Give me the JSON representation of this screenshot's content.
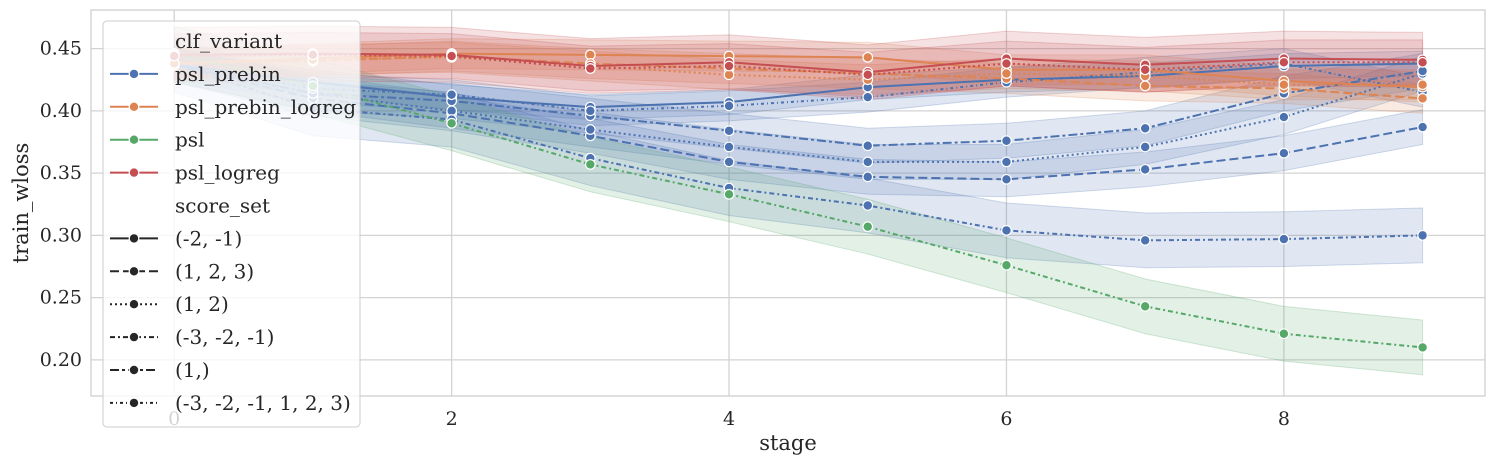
{
  "chart_data": {
    "type": "line",
    "xlabel": "stage",
    "ylabel": "train_wloss",
    "xlim": [
      -0.6,
      9.45
    ],
    "ylim": [
      0.171,
      0.481
    ],
    "xticks": [
      0,
      2,
      4,
      6,
      8
    ],
    "yticks": [
      0.2,
      0.25,
      0.3,
      0.35,
      0.4,
      0.45
    ],
    "ytick_labels": [
      "0.20",
      "0.25",
      "0.30",
      "0.35",
      "0.40",
      "0.45"
    ],
    "grid": true,
    "colors": {
      "psl_prebin": "#4c72b0",
      "psl_prebin_logreg": "#dd8452",
      "psl": "#55a868",
      "psl_logreg": "#c44e52",
      "grid": "#d3d3d3",
      "legend_dark": "#262626"
    },
    "x": [
      0,
      1,
      2,
      3,
      4,
      5,
      6,
      7,
      8,
      9
    ],
    "series": [
      {
        "clf_variant": "psl_prebin",
        "score_set": "(-2, -1)",
        "values": [
          0.437,
          0.423,
          0.411,
          0.403,
          0.407,
          0.419,
          0.425,
          0.428,
          0.436,
          0.438
        ],
        "band": 0.01
      },
      {
        "clf_variant": "psl_prebin",
        "score_set": "(1, 2, 3)",
        "values": [
          0.437,
          0.41,
          0.398,
          0.38,
          0.359,
          0.347,
          0.345,
          0.353,
          0.366,
          0.387
        ],
        "band": 0.014
      },
      {
        "clf_variant": "psl_prebin",
        "score_set": "(1, 2)",
        "values": [
          0.437,
          0.414,
          0.4,
          0.385,
          0.371,
          0.359,
          0.359,
          0.371,
          0.395,
          0.43
        ],
        "band": 0.014
      },
      {
        "clf_variant": "psl_prebin",
        "score_set": "(-3, -2, -1)",
        "values": [
          0.437,
          0.402,
          0.393,
          0.362,
          0.338,
          0.324,
          0.304,
          0.296,
          0.297,
          0.3
        ],
        "band": 0.022
      },
      {
        "clf_variant": "psl_prebin",
        "score_set": "(1,)",
        "values": [
          0.437,
          0.414,
          0.408,
          0.396,
          0.384,
          0.372,
          0.376,
          0.386,
          0.414,
          0.432
        ],
        "band": 0.014
      },
      {
        "clf_variant": "psl_prebin",
        "score_set": "(-3, -2, -1, 1, 2, 3)",
        "values": [
          0.437,
          0.418,
          0.413,
          0.4,
          0.404,
          0.411,
          0.423,
          0.431,
          0.438,
          0.415
        ],
        "band": 0.012
      },
      {
        "clf_variant": "psl_prebin_logreg",
        "score_set": "(-2, -1)",
        "values": [
          0.438,
          0.442,
          0.446,
          0.445,
          0.444,
          0.443,
          0.433,
          0.433,
          0.424,
          0.419
        ],
        "band": 0.012
      },
      {
        "clf_variant": "psl_prebin_logreg",
        "score_set": "(1, 2, 3)",
        "values": [
          0.438,
          0.44,
          0.444,
          0.438,
          0.434,
          0.43,
          0.426,
          0.42,
          0.418,
          0.41
        ],
        "band": 0.012
      },
      {
        "clf_variant": "psl_prebin_logreg",
        "score_set": "(1, 2)",
        "values": [
          0.438,
          0.441,
          0.443,
          0.436,
          0.429,
          0.425,
          0.43,
          0.428,
          0.421,
          0.421
        ],
        "band": 0.012
      },
      {
        "clf_variant": "psl",
        "score_set": "(-3, -2, -1)",
        "values": [
          0.446,
          0.42,
          0.39,
          0.357,
          0.333,
          0.307,
          0.276,
          0.243,
          0.221,
          0.21
        ],
        "band": 0.022
      },
      {
        "clf_variant": "psl_logreg",
        "score_set": "(-2, -1)",
        "values": [
          0.445,
          0.446,
          0.445,
          0.436,
          0.439,
          0.431,
          0.442,
          0.437,
          0.442,
          0.441
        ],
        "band": 0.022
      },
      {
        "clf_variant": "psl_logreg",
        "score_set": "(1, 2)",
        "values": [
          0.444,
          0.445,
          0.444,
          0.434,
          0.436,
          0.429,
          0.438,
          0.433,
          0.439,
          0.439
        ],
        "band": 0.018
      }
    ],
    "dash_styles": {
      "(-2, -1)": "",
      "(1, 2, 3)": "9 4",
      "(1, 2)": "2 3",
      "(-3, -2, -1)": "5 3 2 3",
      "(1,)": "9 3 3 3",
      "(-3, -2, -1, 1, 2, 3)": "3 3 1 3"
    },
    "legend": {
      "position": "upper-left",
      "hue_title": "clf_variant",
      "hue_entries": [
        "psl_prebin",
        "psl_prebin_logreg",
        "psl",
        "psl_logreg"
      ],
      "style_title": "score_set",
      "style_entries": [
        "(-2, -1)",
        "(1, 2, 3)",
        "(1, 2)",
        "(-3, -2, -1)",
        "(1,)",
        "(-3, -2, -1, 1, 2, 3)"
      ]
    }
  }
}
